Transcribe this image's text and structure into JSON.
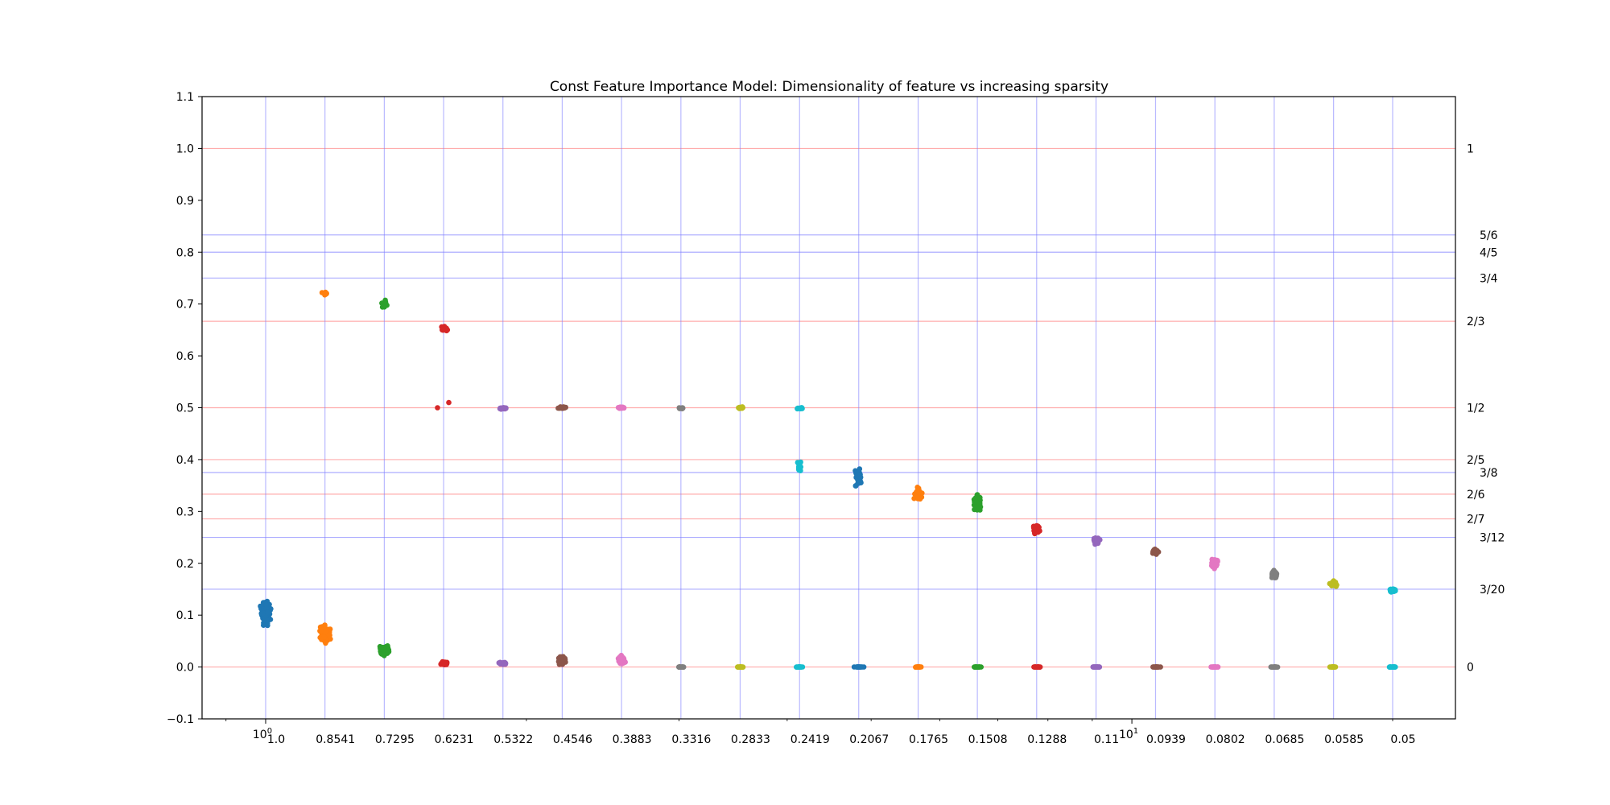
{
  "chart_data": {
    "type": "scatter",
    "title": "Const Feature Importance Model: Dimensionality of feature vs increasing sparsity",
    "xlabel": "",
    "ylabel": "",
    "x_scale": "log",
    "ylim": [
      -0.1,
      1.1
    ],
    "y_ticks": [
      "−0.1",
      "0.0",
      "0.1",
      "0.2",
      "0.3",
      "0.4",
      "0.5",
      "0.6",
      "0.7",
      "0.8",
      "0.9",
      "1.0",
      "1.1"
    ],
    "x_log_major_ticks": [
      {
        "label_base": "10",
        "label_exp": "0",
        "value": 1
      },
      {
        "label_base": "10",
        "label_exp": "1",
        "value": 10
      }
    ],
    "x_tick_labels": [
      "1.0",
      "0.8541",
      "0.7295",
      "0.6231",
      "0.5322",
      "0.4546",
      "0.3883",
      "0.3316",
      "0.2833",
      "0.2419",
      "0.2067",
      "0.1765",
      "0.1508",
      "0.1288",
      "0.11",
      "0.0939",
      "0.0802",
      "0.0685",
      "0.0585",
      "0.05"
    ],
    "reference_lines": [
      {
        "label": "1",
        "value": 1.0,
        "color": "#ff8080"
      },
      {
        "label": "5/6",
        "value": 0.8333,
        "color": "#8080ff"
      },
      {
        "label": "4/5",
        "value": 0.8,
        "color": "#8080ff"
      },
      {
        "label": "3/4",
        "value": 0.75,
        "color": "#8080ff"
      },
      {
        "label": "2/3",
        "value": 0.6667,
        "color": "#ff8080"
      },
      {
        "label": "1/2",
        "value": 0.5,
        "color": "#ff8080"
      },
      {
        "label": "2/5",
        "value": 0.4,
        "color": "#ff8080"
      },
      {
        "label": "3/8",
        "value": 0.375,
        "color": "#8080ff"
      },
      {
        "label": "2/6",
        "value": 0.3333,
        "color": "#ff8080"
      },
      {
        "label": "2/7",
        "value": 0.2857,
        "color": "#ff8080"
      },
      {
        "label": "3/12",
        "value": 0.25,
        "color": "#8080ff"
      },
      {
        "label": "3/20",
        "value": 0.15,
        "color": "#8080ff"
      },
      {
        "label": "0",
        "value": 0.0,
        "color": "#ff8080"
      }
    ],
    "grid": "vertical lines at each sparsity column (blue)",
    "colors": [
      "#1f77b4",
      "#ff7f0e",
      "#2ca02c",
      "#d62728",
      "#9467bd",
      "#8c564b",
      "#e377c2",
      "#7f7f7f",
      "#bcbd22",
      "#17becf"
    ],
    "series": [
      {
        "x": 1.0,
        "color": "#1f77b4",
        "clusters": [
          {
            "center": 0.105,
            "spread": 0.075,
            "count": 120,
            "jitter": 0.012
          }
        ]
      },
      {
        "x": 0.8541,
        "color": "#ff7f0e",
        "clusters": [
          {
            "center": 0.72,
            "spread": 0.015,
            "count": 10,
            "jitter": 0.01
          },
          {
            "center": 0.065,
            "spread": 0.06,
            "count": 110,
            "jitter": 0.012
          }
        ]
      },
      {
        "x": 0.7295,
        "color": "#2ca02c",
        "clusters": [
          {
            "center": 0.7,
            "spread": 0.03,
            "count": 18,
            "jitter": 0.009
          },
          {
            "center": 0.03,
            "spread": 0.035,
            "count": 60,
            "jitter": 0.012
          }
        ]
      },
      {
        "x": 0.6231,
        "color": "#d62728",
        "clusters": [
          {
            "center": 0.652,
            "spread": 0.02,
            "count": 18,
            "jitter": 0.011
          },
          {
            "center": 0.007,
            "spread": 0.01,
            "count": 30,
            "jitter": 0.012
          }
        ],
        "outliers": [
          [
            -0.007,
            0.5
          ],
          [
            0.006,
            0.51
          ]
        ]
      },
      {
        "x": 0.5322,
        "color": "#9467bd",
        "clusters": [
          {
            "center": 0.499,
            "spread": 0.006,
            "count": 25,
            "jitter": 0.009
          },
          {
            "center": 0.007,
            "spread": 0.01,
            "count": 30,
            "jitter": 0.011
          }
        ]
      },
      {
        "x": 0.4546,
        "color": "#8c564b",
        "clusters": [
          {
            "center": 0.5,
            "spread": 0.006,
            "count": 25,
            "jitter": 0.01
          },
          {
            "center": 0.013,
            "spread": 0.025,
            "count": 50,
            "jitter": 0.012
          }
        ]
      },
      {
        "x": 0.3883,
        "color": "#e377c2",
        "clusters": [
          {
            "center": 0.5,
            "spread": 0.005,
            "count": 20,
            "jitter": 0.01
          },
          {
            "center": 0.014,
            "spread": 0.03,
            "count": 45,
            "jitter": 0.012
          }
        ]
      },
      {
        "x": 0.3316,
        "color": "#7f7f7f",
        "clusters": [
          {
            "center": 0.499,
            "spread": 0.005,
            "count": 15,
            "jitter": 0.008
          },
          {
            "center": 0.0,
            "spread": 0.001,
            "count": 20,
            "jitter": 0.01
          }
        ]
      },
      {
        "x": 0.2833,
        "color": "#bcbd22",
        "clusters": [
          {
            "center": 0.5,
            "spread": 0.008,
            "count": 15,
            "jitter": 0.008
          },
          {
            "center": 0.0,
            "spread": 0.001,
            "count": 20,
            "jitter": 0.01
          }
        ]
      },
      {
        "x": 0.2419,
        "color": "#17becf",
        "clusters": [
          {
            "center": 0.499,
            "spread": 0.006,
            "count": 15,
            "jitter": 0.009
          },
          {
            "center": 0.385,
            "spread": 0.04,
            "count": 12,
            "jitter": 0.008
          },
          {
            "center": 0.0,
            "spread": 0.001,
            "count": 20,
            "jitter": 0.01
          }
        ]
      },
      {
        "x": 0.2067,
        "color": "#1f77b4",
        "clusters": [
          {
            "center": 0.365,
            "spread": 0.07,
            "count": 40,
            "jitter": 0.009
          },
          {
            "center": 0.0,
            "spread": 0.001,
            "count": 20,
            "jitter": 0.01
          }
        ]
      },
      {
        "x": 0.1765,
        "color": "#ff7f0e",
        "clusters": [
          {
            "center": 0.335,
            "spread": 0.045,
            "count": 35,
            "jitter": 0.009
          },
          {
            "center": 0.0,
            "spread": 0.001,
            "count": 20,
            "jitter": 0.01
          }
        ]
      },
      {
        "x": 0.1508,
        "color": "#2ca02c",
        "clusters": [
          {
            "center": 0.318,
            "spread": 0.055,
            "count": 40,
            "jitter": 0.009
          },
          {
            "center": 0.0,
            "spread": 0.001,
            "count": 20,
            "jitter": 0.01
          }
        ]
      },
      {
        "x": 0.1288,
        "color": "#d62728",
        "clusters": [
          {
            "center": 0.265,
            "spread": 0.035,
            "count": 40,
            "jitter": 0.009
          },
          {
            "center": 0.0,
            "spread": 0.001,
            "count": 20,
            "jitter": 0.01
          }
        ]
      },
      {
        "x": 0.11,
        "color": "#9467bd",
        "clusters": [
          {
            "center": 0.242,
            "spread": 0.028,
            "count": 40,
            "jitter": 0.009
          },
          {
            "center": 0.0,
            "spread": 0.001,
            "count": 20,
            "jitter": 0.01
          }
        ]
      },
      {
        "x": 0.0939,
        "color": "#8c564b",
        "clusters": [
          {
            "center": 0.222,
            "spread": 0.015,
            "count": 40,
            "jitter": 0.009
          },
          {
            "center": 0.0,
            "spread": 0.001,
            "count": 20,
            "jitter": 0.01
          }
        ]
      },
      {
        "x": 0.0802,
        "color": "#e377c2",
        "clusters": [
          {
            "center": 0.2,
            "spread": 0.03,
            "count": 40,
            "jitter": 0.009
          },
          {
            "center": 0.0,
            "spread": 0.001,
            "count": 20,
            "jitter": 0.01
          }
        ]
      },
      {
        "x": 0.0685,
        "color": "#7f7f7f",
        "clusters": [
          {
            "center": 0.178,
            "spread": 0.03,
            "count": 45,
            "jitter": 0.009
          },
          {
            "center": 0.0,
            "spread": 0.001,
            "count": 20,
            "jitter": 0.01
          }
        ]
      },
      {
        "x": 0.0585,
        "color": "#bcbd22",
        "clusters": [
          {
            "center": 0.16,
            "spread": 0.018,
            "count": 40,
            "jitter": 0.009
          },
          {
            "center": 0.0,
            "spread": 0.001,
            "count": 20,
            "jitter": 0.01
          }
        ]
      },
      {
        "x": 0.05,
        "color": "#17becf",
        "clusters": [
          {
            "center": 0.148,
            "spread": 0.012,
            "count": 40,
            "jitter": 0.009
          },
          {
            "center": 0.0,
            "spread": 0.001,
            "count": 20,
            "jitter": 0.01
          }
        ]
      }
    ]
  }
}
